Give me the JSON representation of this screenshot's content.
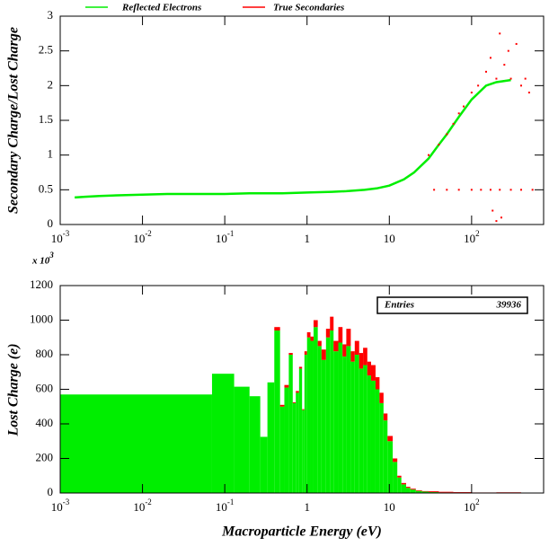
{
  "chart_data": [
    {
      "type": "scatter",
      "xscale": "log",
      "ylabel": "Secondary Charge/Lost Charge",
      "xlim": [
        0.001,
        750
      ],
      "ylim": [
        0,
        3
      ],
      "xticks": [
        {
          "value": 0.001,
          "label": "10^-3"
        },
        {
          "value": 0.01,
          "label": "10^-2"
        },
        {
          "value": 0.1,
          "label": "10^-1"
        },
        1,
        10,
        {
          "value": 100,
          "label": "10^2"
        }
      ],
      "yticks": [
        0,
        0.5,
        1,
        1.5,
        2,
        2.5,
        3
      ],
      "series": [
        {
          "name": "Reflected Electrons",
          "color": "#00ee00",
          "style": "line",
          "x": [
            0.0015,
            0.002,
            0.003,
            0.005,
            0.01,
            0.02,
            0.05,
            0.1,
            0.2,
            0.5,
            1,
            2,
            3,
            5,
            7,
            10,
            15,
            20,
            30,
            40,
            50,
            70,
            100,
            150,
            200,
            300
          ],
          "values": [
            0.39,
            0.4,
            0.41,
            0.42,
            0.43,
            0.44,
            0.44,
            0.44,
            0.45,
            0.45,
            0.46,
            0.47,
            0.48,
            0.5,
            0.52,
            0.56,
            0.65,
            0.75,
            0.95,
            1.15,
            1.3,
            1.55,
            1.8,
            2.0,
            2.05,
            2.08
          ]
        },
        {
          "name": "True Secondaries",
          "color": "#ff0000",
          "style": "points",
          "x": [
            30,
            40,
            50,
            60,
            70,
            80,
            100,
            120,
            150,
            170,
            200,
            220,
            250,
            280,
            300,
            350,
            400,
            450,
            500,
            35,
            50,
            70,
            100,
            130,
            170,
            220,
            300,
            400,
            550,
            180,
            200,
            230
          ],
          "values": [
            1.0,
            1.15,
            1.3,
            1.45,
            1.6,
            1.7,
            1.9,
            2.0,
            2.2,
            2.4,
            2.1,
            2.75,
            2.3,
            2.5,
            2.1,
            2.6,
            2.0,
            2.1,
            1.9,
            0.5,
            0.5,
            0.5,
            0.5,
            0.5,
            0.5,
            0.5,
            0.5,
            0.5,
            0.5,
            0.2,
            0.05,
            0.1
          ]
        }
      ]
    },
    {
      "type": "histogram",
      "xscale": "log",
      "xlabel": "Macroparticle Energy (eV)",
      "ylabel": "Lost Charge (e)",
      "multiplier": "x 10^3",
      "stats": {
        "label": "Entries",
        "value": 39936
      },
      "xlim": [
        0.001,
        750
      ],
      "ylim": [
        0,
        1200
      ],
      "xticks": [
        {
          "value": 0.001,
          "label": "10^-3"
        },
        {
          "value": 0.01,
          "label": "10^-2"
        },
        {
          "value": 0.1,
          "label": "10^-1"
        },
        1,
        10,
        {
          "value": 100,
          "label": "10^2"
        }
      ],
      "yticks": [
        0,
        200,
        400,
        600,
        800,
        1000,
        1200
      ],
      "bins": [
        0.001,
        0.07,
        0.13,
        0.2,
        0.27,
        0.33,
        0.4,
        0.47,
        0.53,
        0.6,
        0.67,
        0.73,
        0.8,
        0.87,
        0.93,
        1.0,
        1.1,
        1.2,
        1.35,
        1.5,
        1.7,
        1.9,
        2.1,
        2.4,
        2.7,
        3,
        3.4,
        3.8,
        4.3,
        4.8,
        5.4,
        6,
        6.8,
        7.6,
        8.5,
        9.5,
        11,
        12.5,
        14,
        16,
        18,
        21,
        25,
        30,
        40,
        60,
        100,
        200,
        400,
        750
      ],
      "series": [
        {
          "name": "Reflected Electrons",
          "color": "#00ee00",
          "values": [
            570,
            690,
            615,
            560,
            325,
            640,
            940,
            500,
            610,
            800,
            520,
            580,
            720,
            480,
            800,
            900,
            880,
            960,
            850,
            770,
            900,
            940,
            820,
            870,
            790,
            850,
            760,
            800,
            720,
            740,
            680,
            650,
            600,
            520,
            420,
            300,
            180,
            90,
            50,
            30,
            20,
            12,
            8,
            5,
            3,
            2,
            1,
            1,
            0
          ]
        },
        {
          "name": "True Secondaries",
          "color": "#ff0000",
          "values": [
            0,
            0,
            0,
            0,
            0,
            0,
            20,
            10,
            15,
            10,
            5,
            10,
            10,
            5,
            20,
            30,
            25,
            40,
            30,
            60,
            50,
            80,
            60,
            90,
            70,
            100,
            60,
            80,
            90,
            100,
            80,
            90,
            70,
            60,
            40,
            30,
            20,
            10,
            8,
            6,
            5,
            4,
            3,
            5,
            4,
            3,
            2,
            3,
            1
          ]
        }
      ]
    }
  ]
}
